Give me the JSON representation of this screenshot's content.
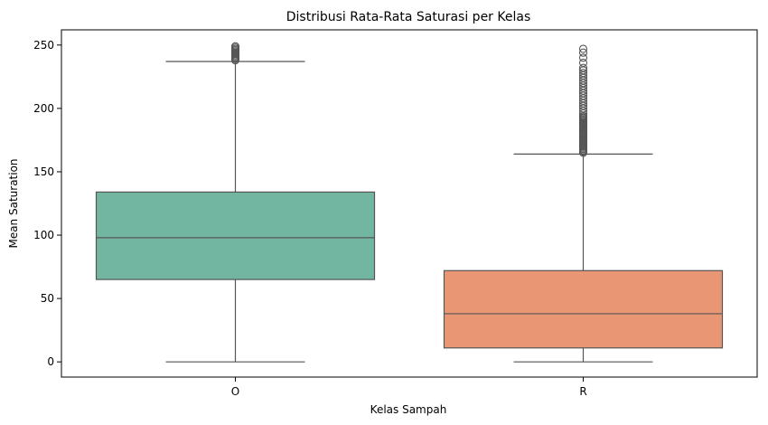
{
  "chart_data": {
    "type": "box",
    "title": "Distribusi Rata-Rata Saturasi per Kelas",
    "xlabel": "Kelas Sampah",
    "ylabel": "Mean Saturation",
    "ylim": [
      -12,
      262
    ],
    "yticks": [
      0,
      50,
      100,
      150,
      200,
      250
    ],
    "grid": false,
    "categories": [
      "O",
      "R"
    ],
    "boxes": [
      {
        "category": "O",
        "color": "#72b6a1",
        "whisker_low": 0,
        "q1": 65,
        "median": 98,
        "q3": 134,
        "whisker_high": 237,
        "outliers": [
          238,
          239,
          240,
          241,
          242,
          243,
          244,
          245,
          246,
          247,
          248,
          249
        ]
      },
      {
        "category": "R",
        "color": "#e99675",
        "whisker_low": 0,
        "q1": 11,
        "median": 38,
        "q3": 72,
        "whisker_high": 164,
        "outliers": [
          165,
          166,
          167,
          168,
          169,
          170,
          171,
          172,
          173,
          174,
          175,
          176,
          177,
          178,
          179,
          180,
          181,
          182,
          183,
          184,
          185,
          186,
          187,
          188,
          189,
          190,
          191,
          192,
          193,
          194,
          196,
          198,
          200,
          202,
          204,
          206,
          208,
          210,
          212,
          214,
          216,
          218,
          220,
          222,
          224,
          226,
          228,
          230,
          232,
          236,
          240,
          244,
          247
        ]
      }
    ],
    "line_color": "#555555"
  }
}
